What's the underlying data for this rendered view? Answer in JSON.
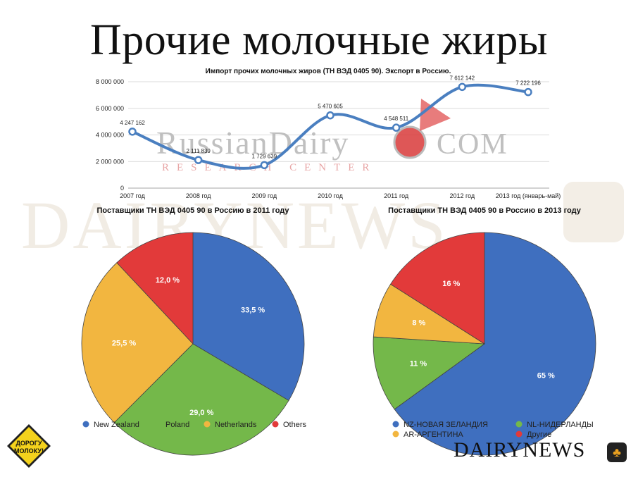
{
  "slide": {
    "title": "Прочие молочные жиры",
    "watermark_main": "RussianDairy",
    "watermark_com": "COM",
    "watermark_sub": "RESEARCH CENTER",
    "watermark_bg": "DAIRYNEWS",
    "footer_brand": "DAIRYNEWS",
    "badge_lines": [
      "ДОРОГУ",
      "МОЛОКУ!"
    ]
  },
  "colors": {
    "line": "#4a7fc0",
    "blue": "#3f6fbf",
    "green": "#74b84a",
    "yellow": "#f2b640",
    "red": "#e23a3a",
    "badge": "#f4d21c"
  },
  "chart_data": [
    {
      "type": "line",
      "title": "Импорт прочих молочных жиров (ТН ВЭД 0405 90). Экспорт в Россию.",
      "categories": [
        "2007 год",
        "2008 год",
        "2009 год",
        "2010 год",
        "2011 год",
        "2012 год",
        "2013 год (январь-май)"
      ],
      "values": [
        4247162,
        2111839,
        1729639,
        5470605,
        4548511,
        7612142,
        7222196
      ],
      "value_labels": [
        "4 247 162",
        "2 111 839",
        "1 729 639",
        "5 470 605",
        "4 548 511",
        "7 612 142",
        "7 222 196"
      ],
      "ylim": [
        0,
        8000000
      ],
      "yticks": [
        0,
        2000000,
        4000000,
        6000000,
        8000000
      ],
      "ytick_labels": [
        "0",
        "2 000 000",
        "4 000 000",
        "6 000 000",
        "8 000 000"
      ],
      "grid": true
    },
    {
      "type": "pie",
      "title": "Поставщики ТН ВЭД 0405 90 в Россию в 2011 году",
      "labels": [
        "New Zealand",
        "Poland",
        "Netherlands",
        "Others"
      ],
      "values": [
        33.5,
        29.0,
        25.5,
        12.0
      ],
      "value_labels": [
        "33,5 %",
        "29,0 %",
        "25,5 %",
        "12,0 %"
      ],
      "legend": "bottom"
    },
    {
      "type": "pie",
      "title": "Поставщики ТН ВЭД 0405 90 в Россию в 2013 году",
      "labels": [
        "NZ-НОВАЯ ЗЕЛАНДИЯ",
        "NL-НИДЕРЛАНДЫ",
        "AR-АРГЕНТИНА",
        "Другие"
      ],
      "values": [
        65,
        11,
        8,
        16
      ],
      "value_labels": [
        "65 %",
        "11 %",
        "8 %",
        "16 %"
      ],
      "legend": "bottom"
    }
  ]
}
